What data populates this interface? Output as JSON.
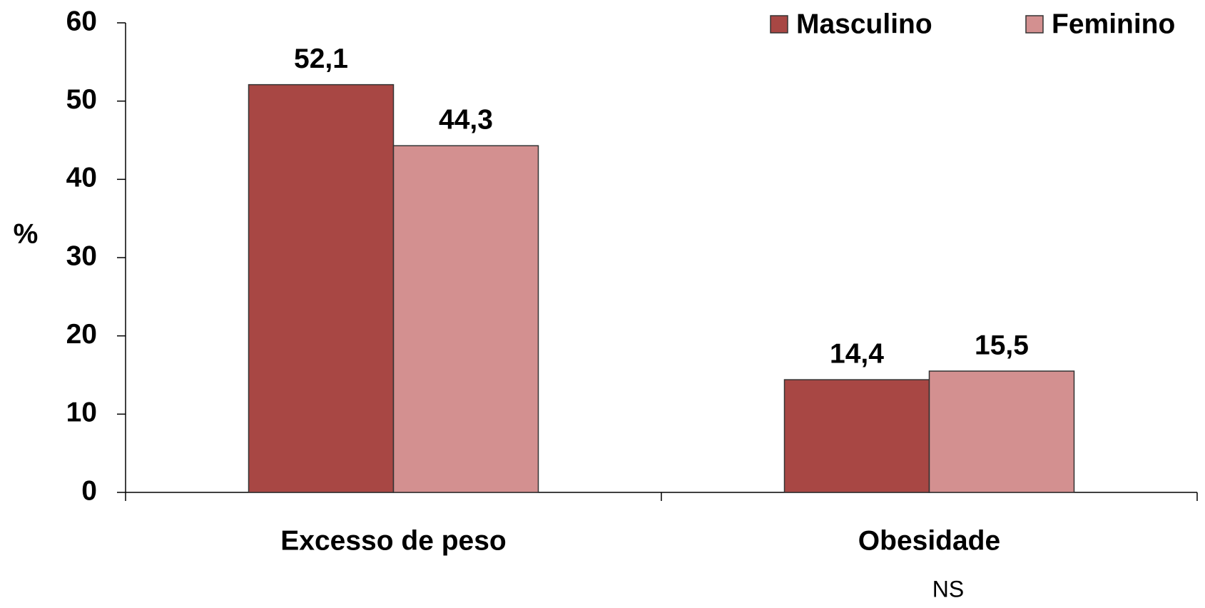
{
  "chart_data": {
    "type": "bar",
    "y_label": "%",
    "categories": [
      "Excesso de peso",
      "Obesidade"
    ],
    "series": [
      {
        "name": "Masculino",
        "color": "#a84744",
        "values": [
          52.1,
          14.4
        ],
        "value_labels": [
          "52,1",
          "14,4"
        ]
      },
      {
        "name": "Feminino",
        "color": "#d39090",
        "values": [
          44.3,
          15.5
        ],
        "value_labels": [
          "44,3",
          "15,5"
        ]
      }
    ],
    "annotation": "NS",
    "ylim": [
      0,
      60
    ],
    "yticks": [
      0,
      10,
      20,
      30,
      40,
      50,
      60
    ],
    "legend": "top-right"
  }
}
